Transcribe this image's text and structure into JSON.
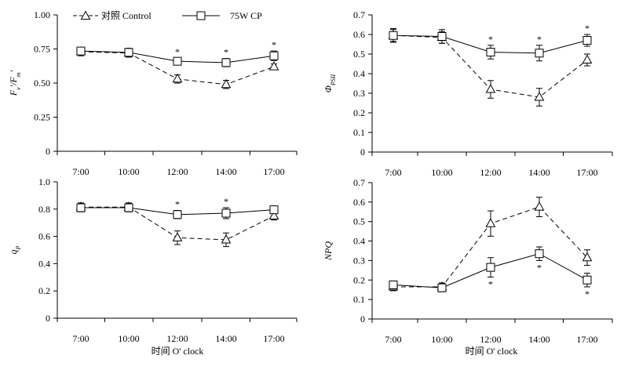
{
  "legend": {
    "control_label": "对照 Control",
    "treatment_label": "75W CP"
  },
  "x_axis_title": "时间 O' clock",
  "chart_data": [
    {
      "type": "line",
      "panel": "top-left",
      "ylabel": "Fv'/Fm'",
      "ylabel_main_1": "F",
      "ylabel_sub_1": "v",
      "ylabel_mid": "'/",
      "ylabel_main_2": "F",
      "ylabel_sub_2": "m",
      "ylabel_end": "'",
      "categories": [
        "7:00",
        "10:00",
        "12:00",
        "14:00",
        "17:00"
      ],
      "ylim": [
        0,
        1
      ],
      "yticks": [
        "0",
        "0.25",
        "0.50",
        "0.75",
        "1.00"
      ],
      "series": [
        {
          "name": "对照 Control",
          "marker": "triangle",
          "dash": true,
          "values": [
            0.73,
            0.72,
            0.53,
            0.49,
            0.62
          ],
          "errors": [
            0.03,
            0.03,
            0.03,
            0.03,
            0.02
          ]
        },
        {
          "name": "75W CP",
          "marker": "square",
          "dash": false,
          "values": [
            0.735,
            0.725,
            0.66,
            0.65,
            0.7
          ],
          "errors": [
            0.02,
            0.03,
            0.025,
            0.03,
            0.035
          ]
        }
      ],
      "significance": [
        false,
        false,
        true,
        true,
        true
      ],
      "sig_side": "above"
    },
    {
      "type": "line",
      "panel": "top-right",
      "ylabel": "ΦPSII",
      "ylabel_main_1": "Φ",
      "ylabel_sub_1": "PSII",
      "categories": [
        "7:00",
        "10:00",
        "12:00",
        "14:00",
        "17:00"
      ],
      "ylim": [
        0,
        0.7
      ],
      "yticks": [
        "0",
        "0.1",
        "0.2",
        "0.3",
        "0.4",
        "0.5",
        "0.6",
        "0.7"
      ],
      "series": [
        {
          "name": "对照 Control",
          "marker": "triangle",
          "dash": true,
          "values": [
            0.595,
            0.585,
            0.32,
            0.28,
            0.47
          ],
          "errors": [
            0.03,
            0.03,
            0.045,
            0.045,
            0.03
          ]
        },
        {
          "name": "75W CP",
          "marker": "square",
          "dash": false,
          "values": [
            0.595,
            0.59,
            0.51,
            0.505,
            0.57
          ],
          "errors": [
            0.035,
            0.035,
            0.035,
            0.04,
            0.03
          ]
        }
      ],
      "significance": [
        false,
        false,
        true,
        true,
        true
      ],
      "sig_side": "above"
    },
    {
      "type": "line",
      "panel": "bottom-left",
      "ylabel": "qP",
      "ylabel_main_1": "q",
      "ylabel_sub_1": "P",
      "categories": [
        "7:00",
        "10:00",
        "12:00",
        "14:00",
        "17:00"
      ],
      "ylim": [
        0,
        1
      ],
      "yticks": [
        "0",
        "0.2",
        "0.4",
        "0.6",
        "0.8",
        "1.0"
      ],
      "series": [
        {
          "name": "对照 Control",
          "marker": "triangle",
          "dash": true,
          "values": [
            0.815,
            0.815,
            0.59,
            0.575,
            0.75
          ],
          "errors": [
            0.03,
            0.03,
            0.05,
            0.05,
            0.03
          ]
        },
        {
          "name": "75W CP",
          "marker": "square",
          "dash": false,
          "values": [
            0.81,
            0.81,
            0.76,
            0.77,
            0.795
          ],
          "errors": [
            0.03,
            0.03,
            0.03,
            0.04,
            0.025
          ]
        }
      ],
      "significance": [
        false,
        false,
        true,
        true,
        false
      ],
      "sig_side": "above"
    },
    {
      "type": "line",
      "panel": "bottom-right",
      "ylabel": "NPQ",
      "ylabel_main_1": "NPQ",
      "categories": [
        "7:00",
        "10:00",
        "12:00",
        "14:00",
        "17:00"
      ],
      "ylim": [
        0,
        0.7
      ],
      "yticks": [
        "0",
        "0.1",
        "0.2",
        "0.3",
        "0.4",
        "0.5",
        "0.6",
        "0.7"
      ],
      "series": [
        {
          "name": "对照 Control",
          "marker": "triangle",
          "dash": true,
          "values": [
            0.165,
            0.165,
            0.49,
            0.575,
            0.315
          ],
          "errors": [
            0.02,
            0.02,
            0.065,
            0.05,
            0.04
          ]
        },
        {
          "name": "75W CP",
          "marker": "square",
          "dash": false,
          "values": [
            0.175,
            0.16,
            0.265,
            0.335,
            0.2
          ],
          "errors": [
            0.02,
            0.02,
            0.05,
            0.035,
            0.035
          ]
        }
      ],
      "significance": [
        false,
        false,
        true,
        true,
        true
      ],
      "sig_side": "below"
    }
  ]
}
